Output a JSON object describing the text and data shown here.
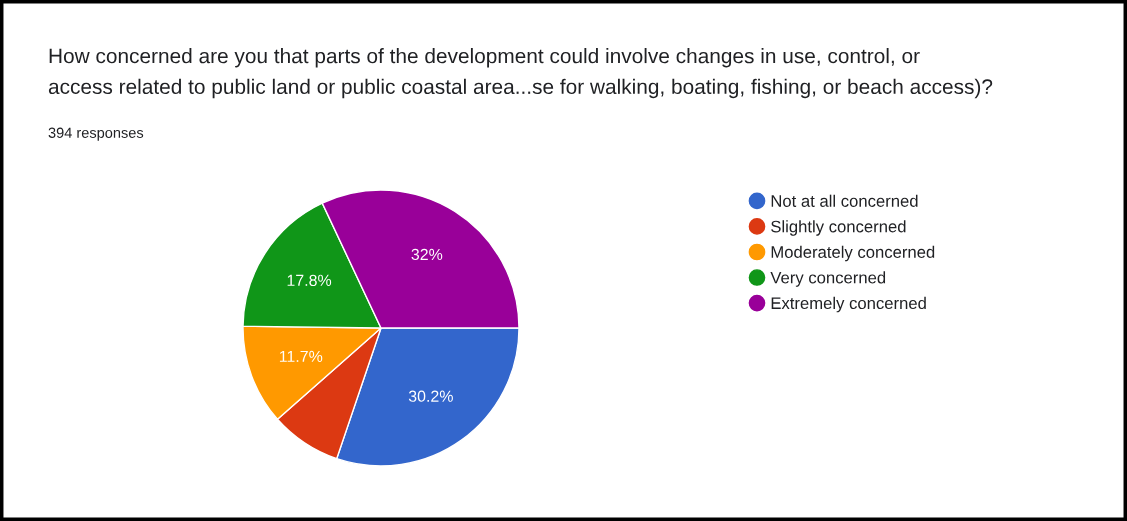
{
  "chart_data": {
    "type": "pie",
    "title": "How concerned are you that parts of the development could involve changes in use, control, or\naccess related to public land or public coastal area...se for walking, boating, fishing, or beach access)?",
    "subtitle": "394 responses",
    "categories": [
      "Not at all concerned",
      "Slightly concerned",
      "Moderately concerned",
      "Very concerned",
      "Extremely concerned"
    ],
    "values": [
      30.2,
      8.3,
      11.7,
      17.8,
      32
    ],
    "value_labels": [
      "30.2%",
      null,
      "11.7%",
      "17.8%",
      "32%"
    ],
    "colors": [
      "#3366cc",
      "#dc3912",
      "#ff9900",
      "#109618",
      "#990099"
    ],
    "legend": "right"
  }
}
